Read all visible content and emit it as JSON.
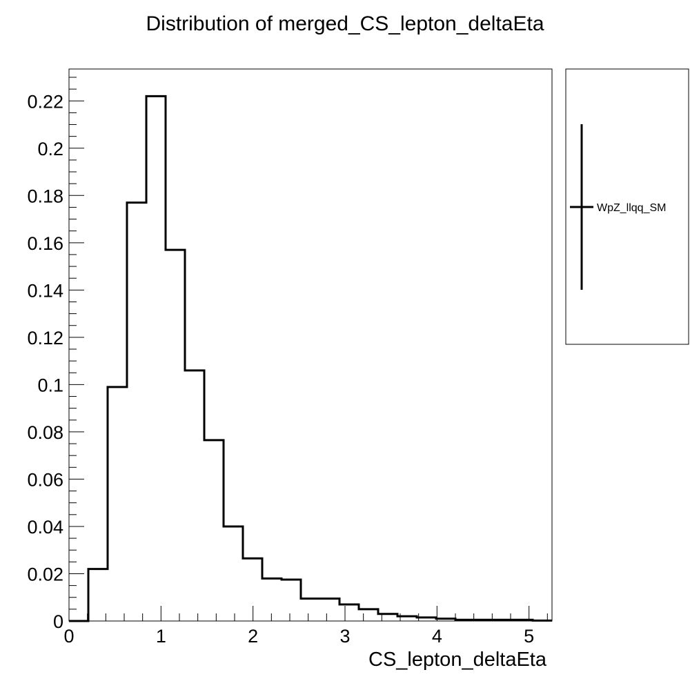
{
  "chart_data": {
    "type": "histogram",
    "title": "Distribution of merged_CS_lepton_deltaEta",
    "xlabel": "CS_lepton_deltaEta",
    "ylabel": "",
    "xlim": [
      0,
      5.25
    ],
    "ylim": [
      0,
      0.2335
    ],
    "x_ticks": [
      0,
      1,
      2,
      3,
      4,
      5
    ],
    "x_tick_labels": [
      "0",
      "1",
      "2",
      "3",
      "4",
      "5"
    ],
    "y_ticks": [
      0,
      0.02,
      0.04,
      0.06,
      0.08,
      0.1,
      0.12,
      0.14,
      0.16,
      0.18,
      0.2,
      0.22
    ],
    "y_tick_labels": [
      "0",
      "0.02",
      "0.04",
      "0.06",
      "0.08",
      "0.1",
      "0.12",
      "0.14",
      "0.16",
      "0.18",
      "0.2",
      "0.22"
    ],
    "bin_edges": [
      0,
      0.21,
      0.42,
      0.63,
      0.84,
      1.05,
      1.26,
      1.47,
      1.68,
      1.89,
      2.1,
      2.31,
      2.52,
      2.73,
      2.94,
      3.15,
      3.36,
      3.57,
      3.78,
      3.99,
      4.2,
      4.41,
      4.62,
      4.83,
      5.04,
      5.25
    ],
    "series": [
      {
        "name": "WpZ_llqq_SM",
        "color": "#000000",
        "values": [
          0.0,
          0.022,
          0.099,
          0.177,
          0.222,
          0.157,
          0.106,
          0.0765,
          0.04,
          0.0265,
          0.018,
          0.0175,
          0.0095,
          0.0095,
          0.007,
          0.005,
          0.003,
          0.002,
          0.0015,
          0.001,
          0.0005,
          0.0005,
          0.0005,
          0.0005,
          0.0002
        ]
      }
    ],
    "legend": {
      "position": "right",
      "entries": [
        "WpZ_llqq_SM"
      ]
    },
    "grid": false
  }
}
